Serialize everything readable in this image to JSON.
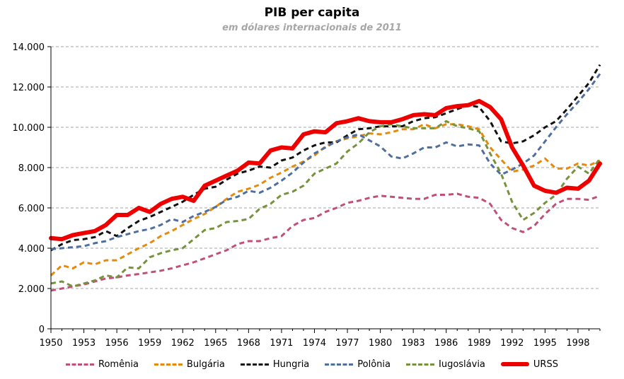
{
  "chart_data": {
    "type": "line",
    "title": "PIB per capita",
    "subtitle": "em dólares internacionais de 2011",
    "xlabel": "",
    "ylabel": "",
    "xlim": [
      1950,
      2000
    ],
    "ylim": [
      0,
      14000
    ],
    "y_ticks": [
      0,
      2000,
      4000,
      6000,
      8000,
      10000,
      12000,
      14000
    ],
    "y_tick_labels": [
      "0",
      "2.000",
      "4.000",
      "6.000",
      "8.000",
      "10.000",
      "12.000",
      "14.000"
    ],
    "x_ticks": [
      1950,
      1953,
      1956,
      1959,
      1962,
      1965,
      1968,
      1971,
      1974,
      1977,
      1980,
      1983,
      1986,
      1989,
      1992,
      1995,
      1998
    ],
    "x_tick_labels": [
      "1950",
      "1953",
      "1956",
      "1959",
      "1962",
      "1965",
      "1968",
      "1971",
      "1974",
      "1977",
      "1980",
      "1983",
      "1986",
      "1989",
      "1992",
      "1995",
      "1998"
    ],
    "grid": "horizontal dashed",
    "legend_position": "bottom",
    "x": [
      1950,
      1951,
      1952,
      1953,
      1954,
      1955,
      1956,
      1957,
      1958,
      1959,
      1960,
      1961,
      1962,
      1963,
      1964,
      1965,
      1966,
      1967,
      1968,
      1969,
      1970,
      1971,
      1972,
      1973,
      1974,
      1975,
      1976,
      1977,
      1978,
      1979,
      1980,
      1981,
      1982,
      1983,
      1984,
      1985,
      1986,
      1987,
      1988,
      1989,
      1990,
      1991,
      1992,
      1993,
      1994,
      1995,
      1996,
      1997,
      1998,
      1999,
      2000
    ],
    "series": [
      {
        "name": "Romênia",
        "color": "#c0507a",
        "dashed": true,
        "width": 3,
        "values": [
          1900,
          2000,
          2100,
          2200,
          2350,
          2500,
          2550,
          2650,
          2720,
          2800,
          2880,
          3000,
          3150,
          3300,
          3500,
          3700,
          3900,
          4200,
          4350,
          4350,
          4500,
          4600,
          5100,
          5400,
          5500,
          5800,
          6000,
          6250,
          6350,
          6500,
          6600,
          6550,
          6500,
          6450,
          6450,
          6650,
          6650,
          6700,
          6550,
          6500,
          6200,
          5400,
          5000,
          4800,
          5100,
          5700,
          6200,
          6450,
          6450,
          6400,
          6600
        ]
      },
      {
        "name": "Bulgária",
        "color": "#e58a0c",
        "dashed": true,
        "width": 3,
        "values": [
          2650,
          3150,
          3000,
          3300,
          3200,
          3400,
          3400,
          3700,
          4000,
          4250,
          4600,
          4850,
          5150,
          5450,
          5700,
          6050,
          6450,
          6800,
          6950,
          7150,
          7500,
          7750,
          8050,
          8300,
          8600,
          9050,
          9300,
          9450,
          9550,
          9700,
          9650,
          9750,
          9900,
          9900,
          10150,
          9950,
          10150,
          10150,
          10050,
          9900,
          9000,
          8400,
          7800,
          7900,
          8100,
          8450,
          7950,
          7950,
          8200,
          8100,
          8350
        ]
      },
      {
        "name": "Hungria",
        "color": "#111111",
        "dashed": true,
        "width": 3,
        "values": [
          3900,
          4200,
          4400,
          4450,
          4550,
          4850,
          4600,
          5000,
          5350,
          5550,
          5800,
          6050,
          6300,
          6650,
          6950,
          7050,
          7400,
          7700,
          7850,
          8050,
          8000,
          8350,
          8500,
          8850,
          9100,
          9250,
          9250,
          9600,
          9900,
          9950,
          10050,
          10050,
          10050,
          10300,
          10450,
          10500,
          10700,
          10900,
          11100,
          11000,
          10300,
          9300,
          9200,
          9300,
          9600,
          10000,
          10300,
          10900,
          11550,
          12200,
          13100
        ]
      },
      {
        "name": "Polônia",
        "color": "#4f6f9f",
        "dashed": true,
        "width": 3,
        "values": [
          3950,
          4000,
          4050,
          4100,
          4250,
          4350,
          4550,
          4700,
          4850,
          4950,
          5150,
          5450,
          5300,
          5600,
          5800,
          6050,
          6400,
          6550,
          6850,
          6750,
          7000,
          7350,
          7750,
          8250,
          8700,
          9000,
          9300,
          9500,
          9650,
          9350,
          9050,
          8550,
          8450,
          8700,
          9000,
          9000,
          9250,
          9050,
          9150,
          9100,
          8200,
          7650,
          7900,
          8200,
          8600,
          9300,
          10000,
          10650,
          11250,
          11900,
          12650
        ]
      },
      {
        "name": "Iugoslávia",
        "color": "#76923c",
        "dashed": true,
        "width": 3,
        "values": [
          2250,
          2350,
          2100,
          2250,
          2400,
          2650,
          2550,
          3050,
          3000,
          3550,
          3750,
          3900,
          4000,
          4450,
          4900,
          5000,
          5300,
          5350,
          5450,
          5950,
          6200,
          6650,
          6800,
          7100,
          7700,
          7950,
          8200,
          8800,
          9200,
          9750,
          10050,
          10150,
          10050,
          9950,
          9950,
          9950,
          10300,
          10050,
          9950,
          9800,
          8700,
          7700,
          6300,
          5400,
          5750,
          6250,
          6650,
          7450,
          8050,
          7700,
          8450
        ]
      },
      {
        "name": "URSS",
        "color": "#ee0000",
        "dashed": false,
        "width": 6,
        "values": [
          4500,
          4450,
          4650,
          4750,
          4850,
          5150,
          5650,
          5650,
          6000,
          5800,
          6200,
          6450,
          6550,
          6350,
          7100,
          7350,
          7600,
          7850,
          8250,
          8200,
          8850,
          9000,
          8950,
          9650,
          9800,
          9750,
          10200,
          10300,
          10450,
          10300,
          10250,
          10250,
          10400,
          10600,
          10650,
          10600,
          10950,
          11050,
          11100,
          11300,
          11000,
          10400,
          9000,
          8100,
          7100,
          6850,
          6750,
          7000,
          6950,
          7350,
          8200
        ]
      }
    ]
  }
}
